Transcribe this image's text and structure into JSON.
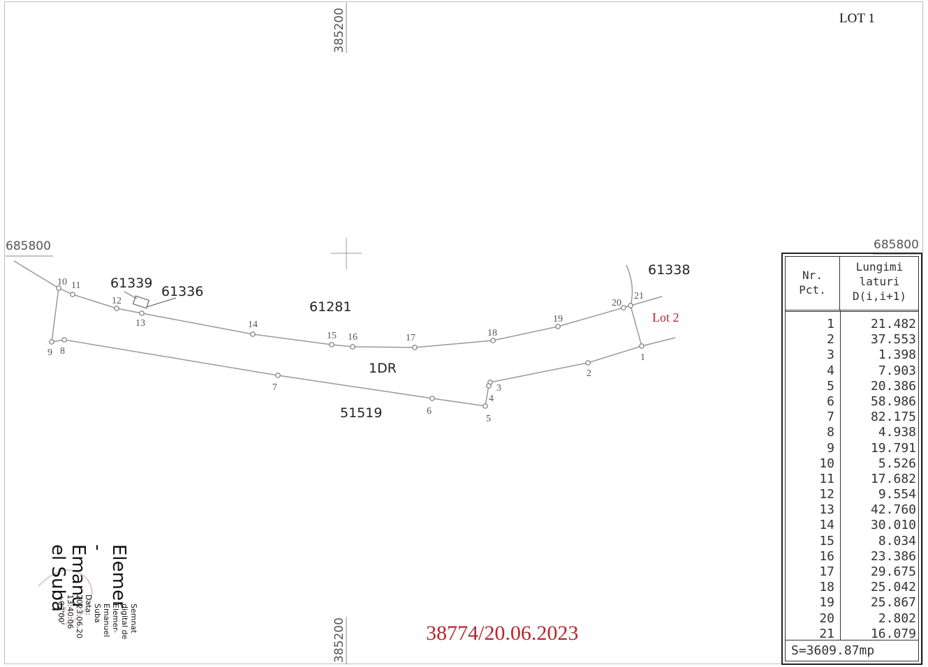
{
  "lot_label": "LOT 1",
  "coords": {
    "north_left": "685800",
    "north_right": "685800",
    "east_top": "385200",
    "east_bottom": "385200"
  },
  "parcels": {
    "p61339": "61339",
    "p61336": "61336",
    "p61281": "61281",
    "p61338": "61338",
    "p1dr": "1DR",
    "p51519": "51519",
    "lot2": "Lot 2"
  },
  "points": {
    "n1": "1",
    "n2": "2",
    "n3": "3",
    "n4": "4",
    "n5": "5",
    "n6": "6",
    "n7": "7",
    "n8": "8",
    "n9": "9",
    "n10": "10",
    "n11": "11",
    "n12": "12",
    "n13": "13",
    "n14": "14",
    "n15": "15",
    "n16": "16",
    "n17": "17",
    "n18": "18",
    "n19": "19",
    "n20": "20",
    "n21": "21"
  },
  "table": {
    "header_nr": [
      "Nr.",
      "Pct."
    ],
    "header_len": [
      "Lungimi",
      "laturi",
      "D(i,i+1)"
    ],
    "rows": [
      {
        "nr": "1",
        "d": "21.482"
      },
      {
        "nr": "2",
        "d": "37.553"
      },
      {
        "nr": "3",
        "d": "1.398"
      },
      {
        "nr": "4",
        "d": "7.903"
      },
      {
        "nr": "5",
        "d": "20.386"
      },
      {
        "nr": "6",
        "d": "58.986"
      },
      {
        "nr": "7",
        "d": "82.175"
      },
      {
        "nr": "8",
        "d": "4.938"
      },
      {
        "nr": "9",
        "d": "19.791"
      },
      {
        "nr": "10",
        "d": "5.526"
      },
      {
        "nr": "11",
        "d": "17.682"
      },
      {
        "nr": "12",
        "d": "9.554"
      },
      {
        "nr": "13",
        "d": "42.760"
      },
      {
        "nr": "14",
        "d": "30.010"
      },
      {
        "nr": "15",
        "d": "8.034"
      },
      {
        "nr": "16",
        "d": "23.386"
      },
      {
        "nr": "17",
        "d": "29.675"
      },
      {
        "nr": "18",
        "d": "25.042"
      },
      {
        "nr": "19",
        "d": "25.867"
      },
      {
        "nr": "20",
        "d": "2.802"
      },
      {
        "nr": "21",
        "d": "16.079"
      }
    ],
    "area": "S=3609.87mp"
  },
  "stamp": "38774/20.06.2023",
  "signature": {
    "name_line1": "Elemer",
    "name_line2": "-",
    "name_line3": "Emanu",
    "name_line4": "el Suba",
    "small_line1": "Semnat",
    "small_line2": "digital de",
    "small_line3": "Elemer-",
    "small_line4": "Emanuel",
    "small_line5": "Suba",
    "small_line6": "Data:",
    "small_line7": "2023.06.20",
    "small_line8": "13:40:06",
    "small_line9": "+03'00'"
  }
}
